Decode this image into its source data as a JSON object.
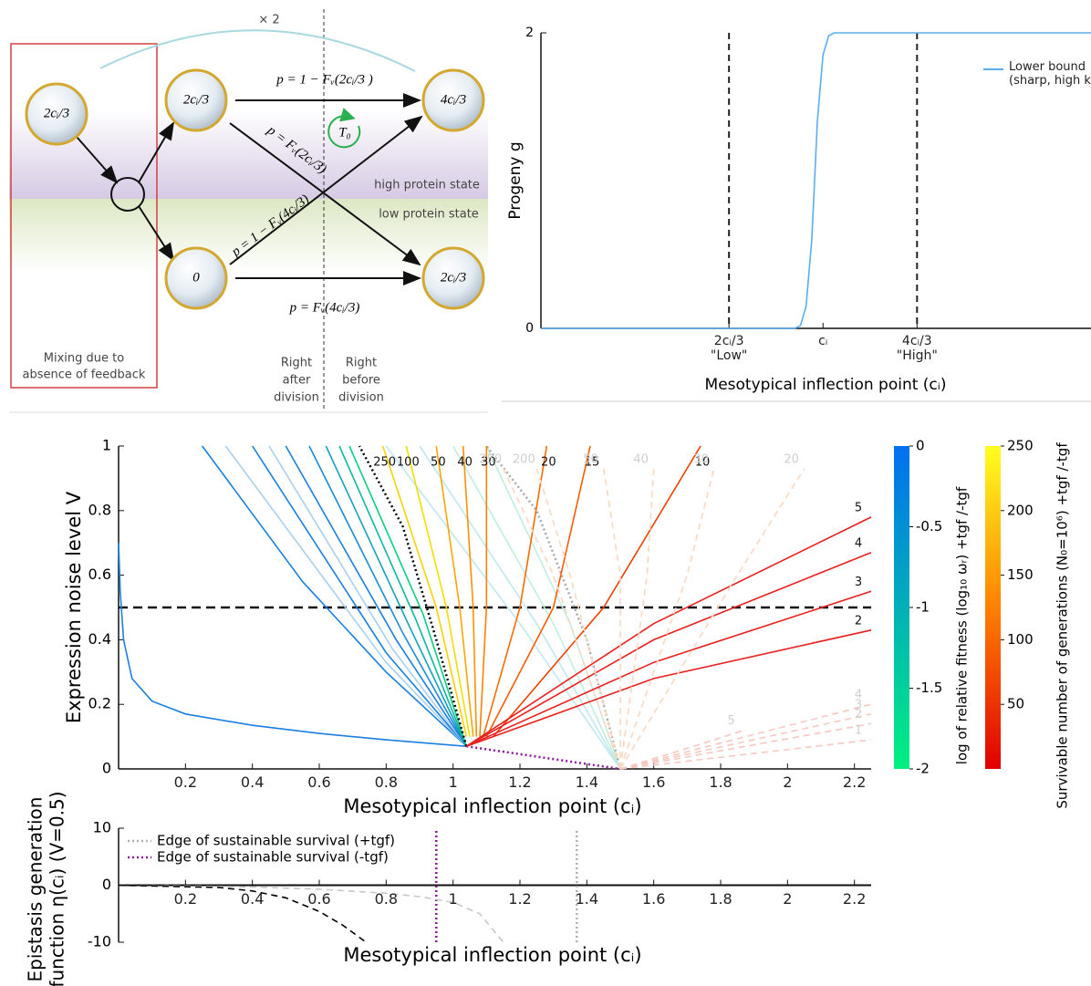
{
  "diagram": {
    "multiplier": "× 2",
    "nodes": [
      {
        "label": "2cᵢ/3"
      },
      {
        "label": "2cᵢ/3"
      },
      {
        "label": "0"
      },
      {
        "label": "4cᵢ/3"
      },
      {
        "label": "2cᵢ/3"
      }
    ],
    "edges": [
      {
        "label": "p = 1 − Fᵥ(2cᵢ/3 )"
      },
      {
        "label": "p = Fᵥ(2cᵢ/3)"
      },
      {
        "label": "p = 1 − Fᵥ(4cᵢ/3)"
      },
      {
        "label": "p = Fᵥ(4cᵢ/3)"
      }
    ],
    "cycle_label": "T₀",
    "states": [
      "high protein state",
      "low protein state"
    ],
    "mixing_label": [
      "Mixing due to",
      "absence of feedback"
    ],
    "phases": [
      [
        "Right",
        "after",
        "division"
      ],
      [
        "Right",
        "before",
        "division"
      ]
    ]
  },
  "chart_data": [
    {
      "type": "line",
      "ylabel": [
        "Progeny g"
      ],
      "xlabel": "Mesotypical inflection point (cᵢ)",
      "xlim": [
        0,
        1.95
      ],
      "ylim": [
        0,
        2
      ],
      "yticks": [
        0,
        2
      ],
      "xticks": [
        {
          "value": 0.6667,
          "label": "2cᵢ/3\n\"Low\""
        },
        {
          "value": 1,
          "label": "cᵢ"
        },
        {
          "value": 1.3333,
          "label": "4cᵢ/3\n\"High\""
        }
      ],
      "vlines": [
        0.6667,
        1.3333
      ],
      "legend": "upper right",
      "series": [
        {
          "name": "Lower bound (sharp, high k",
          "color": "#5aaef0",
          "x": [
            0,
            0.9,
            0.92,
            0.94,
            0.96,
            0.97,
            0.98,
            1.0,
            1.02,
            1.04,
            1.95
          ],
          "values": [
            0,
            0,
            0.02,
            0.15,
            0.6,
            1.0,
            1.4,
            1.85,
            1.98,
            2,
            2
          ]
        }
      ]
    },
    {
      "type": "line",
      "ylabel": [
        "Expression noise level V"
      ],
      "xlabel": "Mesotypical inflection point (cᵢ)",
      "xlim": [
        0,
        2.25
      ],
      "ylim": [
        0,
        1
      ],
      "xticks": [
        0.2,
        0.4,
        0.6,
        0.8,
        1,
        1.2,
        1.4,
        1.6,
        1.8,
        2,
        2.2
      ],
      "yticks": [
        0,
        0.2,
        0.4,
        0.6,
        0.8,
        1
      ],
      "hline": 0.5,
      "series": [
        {
          "color": "#1a7fe0",
          "x": [
            1.04,
            0.8,
            0.6,
            0.4,
            0.2,
            0.1,
            0.04,
            0.015,
            0.005,
            0
          ],
          "values": [
            0.07,
            0.09,
            0.11,
            0.135,
            0.17,
            0.21,
            0.28,
            0.4,
            0.55,
            0.7
          ]
        },
        {
          "color": "#1a7fe0",
          "x": [
            1.04,
            0.8,
            0.55,
            0.25
          ],
          "values": [
            0.07,
            0.3,
            0.58,
            1
          ]
        },
        {
          "color": "#a8d0ee",
          "x": [
            1.04,
            0.8,
            0.32
          ],
          "values": [
            0.07,
            0.33,
            1
          ]
        },
        {
          "color": "#1a7fe0",
          "x": [
            1.04,
            0.8,
            0.4
          ],
          "values": [
            0.07,
            0.36,
            1
          ]
        },
        {
          "color": "#a8d0ee",
          "x": [
            1.04,
            0.82,
            0.45
          ],
          "values": [
            0.07,
            0.37,
            1
          ]
        },
        {
          "color": "#1a7fe0",
          "x": [
            1.04,
            0.83,
            0.5
          ],
          "values": [
            0.07,
            0.4,
            1
          ]
        },
        {
          "color": "#1a8cd8",
          "x": [
            1.04,
            0.85,
            0.57
          ],
          "values": [
            0.07,
            0.42,
            1
          ]
        },
        {
          "color": "#12a0c0",
          "x": [
            1.04,
            0.87,
            0.62
          ],
          "values": [
            0.07,
            0.44,
            1
          ]
        },
        {
          "color": "#0cb8a0",
          "x": [
            1.04,
            0.89,
            0.66
          ],
          "values": [
            0.07,
            0.46,
            1
          ]
        },
        {
          "color": "#08d080",
          "x": [
            1.04,
            0.91,
            0.69
          ],
          "values": [
            0.07,
            0.48,
            1
          ]
        },
        {
          "color": "#c0e8f0",
          "x": [
            1.5,
            1.2,
            0.8
          ],
          "values": [
            0,
            0.45,
            1
          ]
        },
        {
          "color": "#c0e8f0",
          "x": [
            1.5,
            1.25,
            0.9
          ],
          "values": [
            0,
            0.45,
            1
          ]
        },
        {
          "color": "#c0eee0",
          "x": [
            1.5,
            1.3,
            1.0
          ],
          "values": [
            0,
            0.45,
            1
          ]
        },
        {
          "color": "#c0eee0",
          "x": [
            1.5,
            1.35,
            1.1
          ],
          "values": [
            0,
            0.45,
            1
          ]
        },
        {
          "color": "#000000",
          "dash": "dotted",
          "x": [
            1.04,
            0.95,
            0.85,
            0.72
          ],
          "values": [
            0.07,
            0.4,
            0.75,
            1
          ]
        },
        {
          "color": "#a8a8a8",
          "dash": "dotted",
          "x": [
            1.5,
            1.4,
            1.25,
            1.1
          ],
          "values": [
            0,
            0.4,
            0.8,
            1
          ]
        },
        {
          "color": "#8b1a9a",
          "dash": "dotted",
          "x": [
            1.04,
            1.5
          ],
          "values": [
            0.07,
            0
          ]
        },
        {
          "color": "#ffd000",
          "label": "250",
          "x": [
            1.04,
            0.95,
            0.79
          ],
          "values": [
            0.1,
            0.5,
            1
          ]
        },
        {
          "color": "#f0e000",
          "label": "100",
          "x": [
            1.05,
            0.98,
            0.86
          ],
          "values": [
            0.1,
            0.5,
            1
          ]
        },
        {
          "color": "#ffa500",
          "label": "50",
          "x": [
            1.06,
            1.02,
            0.95
          ],
          "values": [
            0.1,
            0.5,
            1
          ]
        },
        {
          "color": "#ff9000",
          "label": "40",
          "x": [
            1.07,
            1.06,
            1.03
          ],
          "values": [
            0.1,
            0.5,
            1
          ]
        },
        {
          "color": "#ff8000",
          "label": "30",
          "x": [
            1.08,
            1.1,
            1.1
          ],
          "values": [
            0.1,
            0.5,
            1
          ]
        },
        {
          "color": "#ff6a00",
          "label": "20",
          "x": [
            1.09,
            1.2,
            1.28
          ],
          "values": [
            0.1,
            0.5,
            1
          ]
        },
        {
          "color": "#ff5a00",
          "label": "15",
          "x": [
            1.1,
            1.3,
            1.41
          ],
          "values": [
            0.1,
            0.5,
            1
          ]
        },
        {
          "color": "#f04000",
          "label": "10",
          "x": [
            1.12,
            1.45,
            1.74
          ],
          "values": [
            0.1,
            0.5,
            1
          ]
        },
        {
          "color": "#e8201e",
          "label": "5",
          "x": [
            1.04,
            1.6,
            2.25
          ],
          "values": [
            0.07,
            0.45,
            0.78
          ]
        },
        {
          "color": "#e8201e",
          "label": "4",
          "x": [
            1.04,
            1.6,
            2.25
          ],
          "values": [
            0.07,
            0.4,
            0.67
          ]
        },
        {
          "color": "#e8201e",
          "label": "3",
          "x": [
            1.04,
            1.6,
            2.25
          ],
          "values": [
            0.07,
            0.33,
            0.55
          ]
        },
        {
          "color": "#e8201e",
          "label": "2",
          "x": [
            1.04,
            1.6,
            2.25
          ],
          "values": [
            0.07,
            0.28,
            0.43
          ]
        },
        {
          "color": "#f8d8c0",
          "dash": "dashed",
          "label": "250",
          "x": [
            1.5,
            1.3,
            1.15
          ],
          "values": [
            0,
            0.6,
            0.93
          ]
        },
        {
          "color": "#f8d8c0",
          "dash": "dashed",
          "label": "200",
          "x": [
            1.5,
            1.35,
            1.25
          ],
          "values": [
            0,
            0.6,
            0.93
          ]
        },
        {
          "color": "#f8d8c0",
          "dash": "dashed",
          "label": "50",
          "x": [
            1.5,
            1.5,
            1.45
          ],
          "values": [
            0,
            0.6,
            0.93
          ]
        },
        {
          "color": "#f8d8c0",
          "dash": "dashed",
          "label": "40",
          "x": [
            1.5,
            1.58,
            1.6
          ],
          "values": [
            0,
            0.6,
            0.93
          ]
        },
        {
          "color": "#f8d8c0",
          "dash": "dashed",
          "label": "30",
          "x": [
            1.5,
            1.7,
            1.78
          ],
          "values": [
            0,
            0.6,
            0.93
          ]
        },
        {
          "color": "#f8d8c0",
          "dash": "dashed",
          "label": "20",
          "x": [
            1.5,
            1.85,
            2.05
          ],
          "values": [
            0,
            0.6,
            0.93
          ]
        },
        {
          "color": "#f6c8c0",
          "dash": "dashed",
          "label": "5",
          "x": [
            1.5,
            1.75,
            1.87
          ],
          "values": [
            0,
            0.08,
            0.12
          ]
        },
        {
          "color": "#f6c8c0",
          "dash": "dashed",
          "label": "4",
          "x": [
            1.5,
            2.25
          ],
          "values": [
            0,
            0.2
          ]
        },
        {
          "color": "#f6c8c0",
          "dash": "dashed",
          "label": "3",
          "x": [
            1.5,
            2.25
          ],
          "values": [
            0,
            0.17
          ]
        },
        {
          "color": "#f6c8c0",
          "dash": "dashed",
          "label": "2",
          "x": [
            1.5,
            2.25
          ],
          "values": [
            0,
            0.14
          ]
        },
        {
          "color": "#f6c8c0",
          "dash": "dashed",
          "label": "1",
          "x": [
            1.5,
            2.25
          ],
          "values": [
            0,
            0.09
          ]
        }
      ],
      "colorbars": [
        {
          "label": "log of relative fitness (log₁₀ ωᵣ) +tgf /-tgf",
          "lim": [
            -2,
            0
          ],
          "ticks": [
            0,
            -0.5,
            -1,
            -1.5,
            -2
          ],
          "colors": [
            "#00f080",
            "#0070f0"
          ]
        },
        {
          "label": "Survivable number of generations (N₀=10⁶) +tgf /-tgf",
          "lim": [
            0,
            250
          ],
          "ticks": [
            50,
            100,
            150,
            200,
            250
          ],
          "colors": [
            "#e00000",
            "#ff8000",
            "#ffff20"
          ]
        }
      ]
    },
    {
      "type": "line",
      "ylabel": [
        "Epistasis generation",
        "function η(cᵢ) (V=0.5)"
      ],
      "xlabel": "Mesotypical inflection point (cᵢ)",
      "xlim": [
        0,
        2.25
      ],
      "ylim": [
        -10,
        10
      ],
      "yticks": [
        -10,
        0,
        10
      ],
      "xticks": [
        0.2,
        0.4,
        0.6,
        0.8,
        1,
        1.2,
        1.4,
        1.6,
        1.8,
        2,
        2.2
      ],
      "axis_position": "zero",
      "legend": "upper left",
      "series": [
        {
          "name": "Edge of sustainable survival (+tgf)",
          "color": "#b0b0b0",
          "dash": "dotted",
          "x": [
            1.37,
            1.37
          ],
          "values": [
            -10,
            10
          ]
        },
        {
          "name": "Edge of sustainable survival (-tgf)",
          "color": "#8b1a9a",
          "dash": "dotted",
          "x": [
            0.95,
            0.95
          ],
          "values": [
            -10,
            10
          ]
        },
        {
          "color": "#c8c8c8",
          "dash": "dashed",
          "x": [
            0,
            0.4,
            0.6,
            0.8,
            0.9,
            1.0,
            1.08,
            1.15
          ],
          "values": [
            0,
            -0.3,
            -0.7,
            -1.4,
            -2,
            -3,
            -5,
            -10
          ]
        },
        {
          "color": "#000000",
          "dash": "dashed",
          "x": [
            0,
            0.3,
            0.4,
            0.5,
            0.6,
            0.67,
            0.74
          ],
          "values": [
            0,
            -0.4,
            -1,
            -2.2,
            -4.6,
            -7,
            -10
          ]
        }
      ]
    }
  ]
}
